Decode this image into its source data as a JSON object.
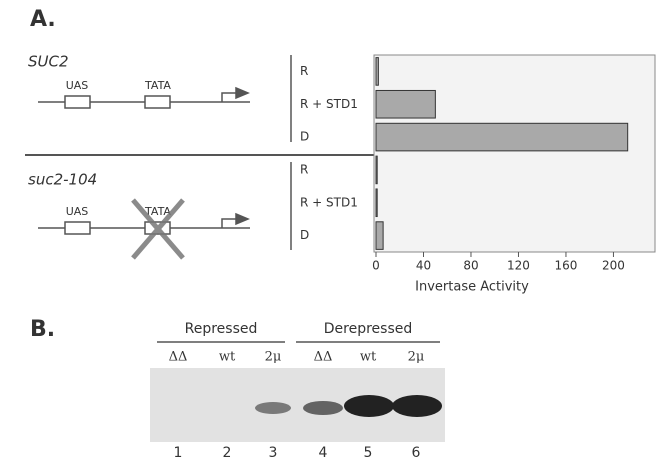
{
  "panel_a": {
    "label": "A.",
    "constructs": [
      {
        "name": "SUC2",
        "uas": "UAS",
        "tata": "TATA"
      },
      {
        "name": "suc2-104",
        "uas": "UAS",
        "tata": "TATA"
      }
    ]
  },
  "chart_data": {
    "type": "bar",
    "orientation": "horizontal",
    "categories": [
      "R",
      "R + STD1",
      "D",
      "R",
      "R + STD1",
      "D"
    ],
    "values": [
      2,
      50,
      212,
      1,
      1,
      6
    ],
    "color": "#a9a9a9",
    "xlim": [
      0,
      235
    ],
    "xticks": [
      0,
      40,
      80,
      120,
      160,
      200
    ],
    "x_label": "Invertase Activity"
  },
  "panel_b": {
    "label": "B.",
    "groups": [
      "Repressed",
      "Derepressed"
    ],
    "lanes": [
      "ΔΔ",
      "wt",
      "2μ",
      "ΔΔ",
      "wt",
      "2μ"
    ],
    "lane_numbers": [
      "1",
      "2",
      "3",
      "4",
      "5",
      "6"
    ]
  }
}
